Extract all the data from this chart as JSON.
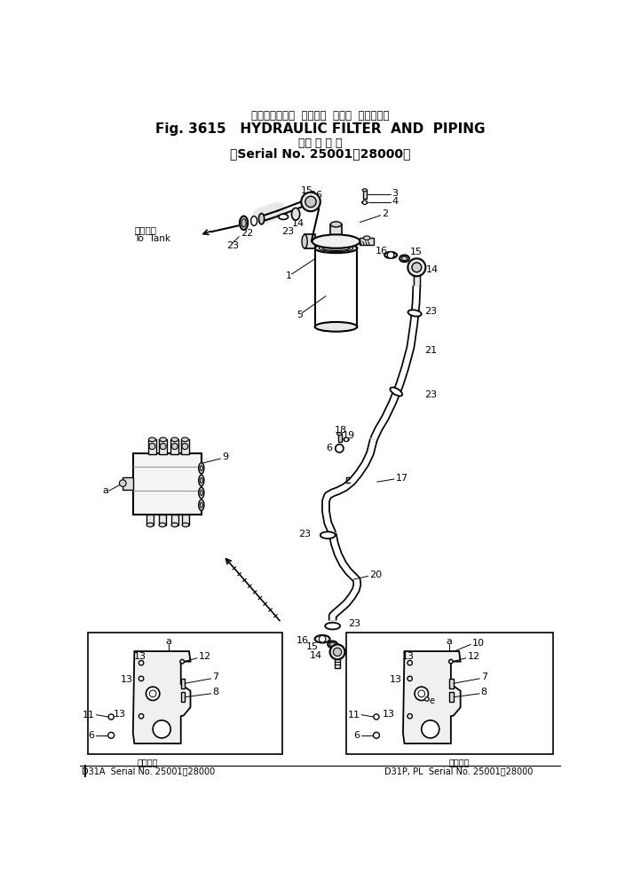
{
  "title_line1": "ハイドロリック  フィルタ  および  パイピング",
  "title_line2": "Fig. 3615   HYDRAULIC FILTER  AND  PIPING",
  "title_line3": "（適 用 号 機",
  "title_line4": "（Serial No. 25001～28000）",
  "footer_left_label": "適用号機",
  "footer_right_label": "適用号機",
  "footer_left_model": "D31A",
  "footer_left_serial": "Serial No. 25001～28000",
  "footer_right_model": "D31P, PL",
  "footer_right_serial": "Serial No. 25001～28000",
  "bg_color": "#ffffff",
  "fig_width": 7.04,
  "fig_height": 9.84
}
